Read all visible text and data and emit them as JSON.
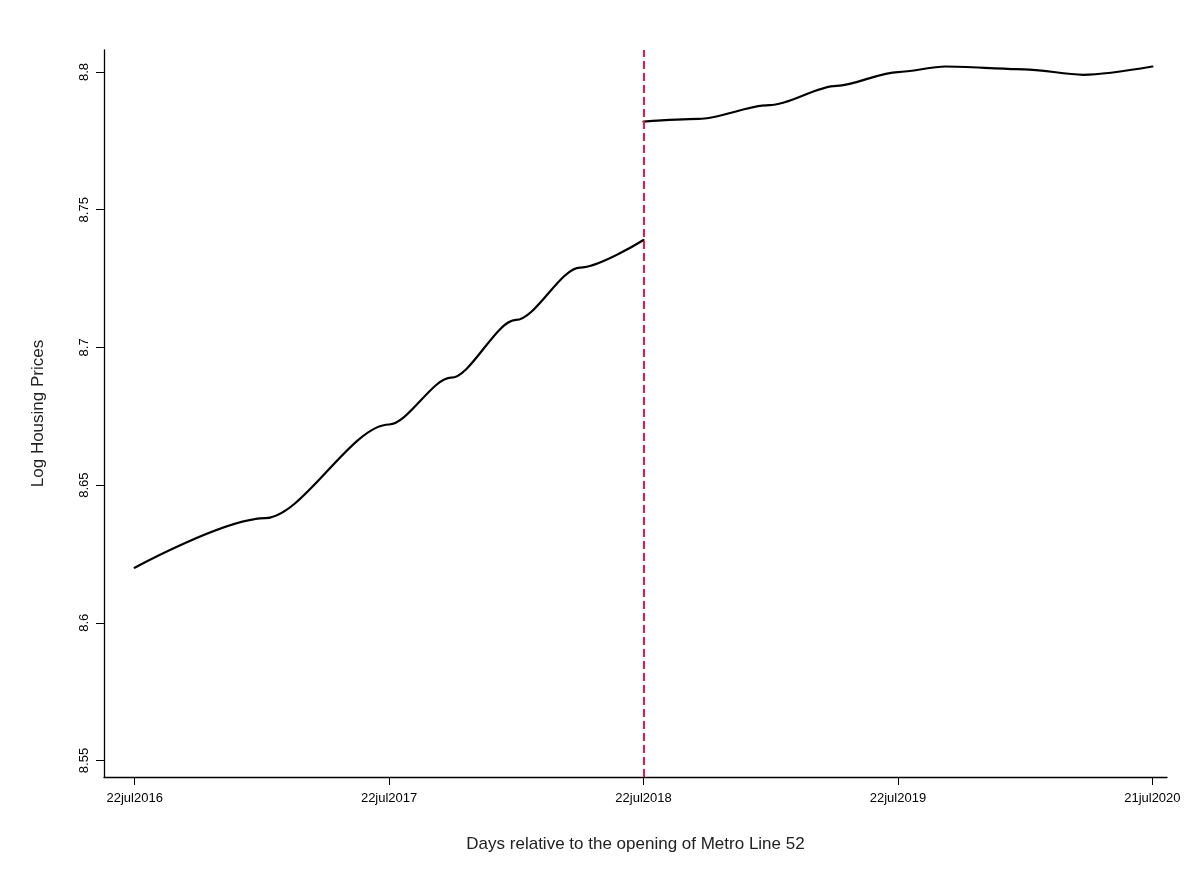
{
  "chart_data": {
    "type": "line",
    "xlabel": "Days relative to the opening of Metro Line 52",
    "ylabel": "Log Housing Prices",
    "series": [
      {
        "color": "#000000",
        "x": [
          "2016-07-22",
          "2017-01-25",
          "2017-07-22",
          "2017-10-19",
          "2018-01-20",
          "2018-04-22",
          "2018-07-22"
        ],
        "values": [
          8.62,
          8.638,
          8.672,
          8.689,
          8.71,
          8.729,
          8.739
        ]
      },
      {
        "color": "#000000",
        "x": [
          "2018-07-22",
          "2018-10-09",
          "2019-01-19",
          "2019-04-25",
          "2019-07-22",
          "2019-09-28",
          "2020-01-19",
          "2020-04-13",
          "2020-07-21"
        ],
        "values": [
          8.782,
          8.783,
          8.788,
          8.795,
          8.8,
          8.802,
          8.801,
          8.799,
          8.802
        ]
      }
    ],
    "xlim": [
      "2016-06-08",
      "2020-08-11"
    ],
    "xticks": [
      {
        "value": "2016-07-22",
        "label": "22jul2016"
      },
      {
        "value": "2017-07-22",
        "label": "22jul2017"
      },
      {
        "value": "2018-07-22",
        "label": "22jul2018"
      },
      {
        "value": "2019-07-22",
        "label": "22jul2019"
      },
      {
        "value": "2020-07-21",
        "label": "21jul2020"
      }
    ],
    "ylim": [
      8.544,
      8.808
    ],
    "yticks": [
      8.55,
      8.6,
      8.65,
      8.7,
      8.75,
      8.8
    ],
    "ref_lines": [
      {
        "axis": "x",
        "value": "2018-07-22",
        "color": "#e8174f",
        "line_style": "dashed"
      }
    ],
    "grid": false,
    "marker": "none",
    "line_style": "solid"
  }
}
